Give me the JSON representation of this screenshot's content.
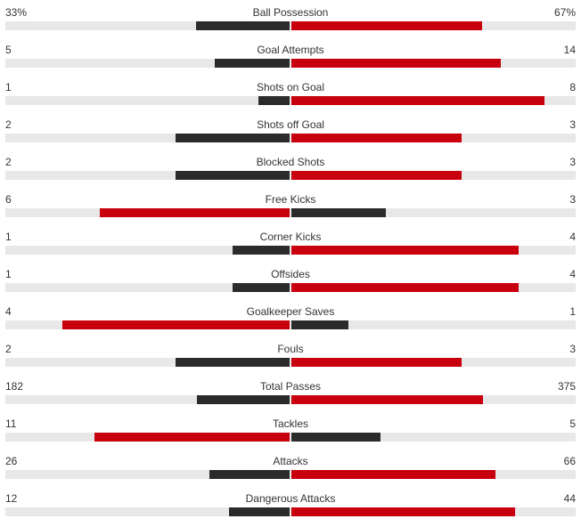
{
  "colors": {
    "leader": "#c8000d",
    "trailer": "#2b2b2b",
    "track": "#e8e8e8"
  },
  "stats": [
    {
      "label": "Ball Possession",
      "home": "33%",
      "away": "67%",
      "home_share": 0.33,
      "away_share": 0.67
    },
    {
      "label": "Goal Attempts",
      "home": "5",
      "away": "14"
    },
    {
      "label": "Shots on Goal",
      "home": "1",
      "away": "8"
    },
    {
      "label": "Shots off Goal",
      "home": "2",
      "away": "3"
    },
    {
      "label": "Blocked Shots",
      "home": "2",
      "away": "3"
    },
    {
      "label": "Free Kicks",
      "home": "6",
      "away": "3"
    },
    {
      "label": "Corner Kicks",
      "home": "1",
      "away": "4"
    },
    {
      "label": "Offsides",
      "home": "1",
      "away": "4"
    },
    {
      "label": "Goalkeeper Saves",
      "home": "4",
      "away": "1"
    },
    {
      "label": "Fouls",
      "home": "2",
      "away": "3"
    },
    {
      "label": "Total Passes",
      "home": "182",
      "away": "375"
    },
    {
      "label": "Tackles",
      "home": "11",
      "away": "5"
    },
    {
      "label": "Attacks",
      "home": "26",
      "away": "66"
    },
    {
      "label": "Dangerous Attacks",
      "home": "12",
      "away": "44"
    }
  ]
}
